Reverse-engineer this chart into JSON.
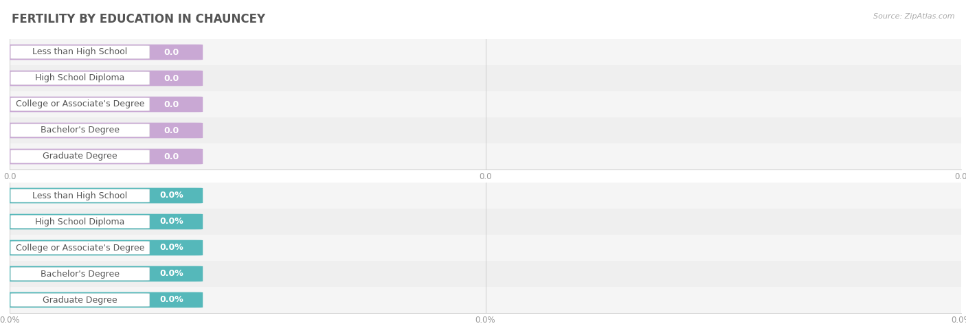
{
  "title": "FERTILITY BY EDUCATION IN CHAUNCEY",
  "source": "Source: ZipAtlas.com",
  "categories": [
    "Less than High School",
    "High School Diploma",
    "College or Associate's Degree",
    "Bachelor's Degree",
    "Graduate Degree"
  ],
  "values_top": [
    0.0,
    0.0,
    0.0,
    0.0,
    0.0
  ],
  "values_bottom": [
    0.0,
    0.0,
    0.0,
    0.0,
    0.0
  ],
  "bar_color_top": "#C9A8D4",
  "bar_color_bottom": "#55B8BA",
  "bg_color": "#ffffff",
  "row_bg_light": "#f2f2f2",
  "row_bg_dark": "#e8e8e8",
  "title_color": "#555555",
  "tick_labels_top": [
    "0.0",
    "0.0",
    "0.0"
  ],
  "tick_labels_bottom": [
    "0.0%",
    "0.0%",
    "0.0%"
  ],
  "label_fontsize": 9.0,
  "title_fontsize": 12,
  "source_fontsize": 8
}
